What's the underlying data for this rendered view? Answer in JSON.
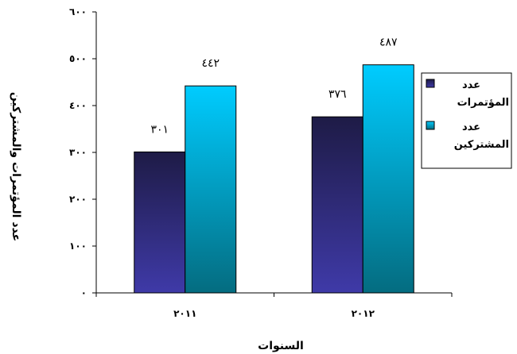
{
  "chart_data": {
    "type": "bar",
    "categories": [
      "٢٠١١",
      "٢٠١٢"
    ],
    "category_values": [
      2011,
      2012
    ],
    "series": [
      {
        "name": "عدد المؤتمرات",
        "values": [
          301,
          376
        ],
        "labels": [
          "٣٠١",
          "٣٧٦"
        ],
        "color_top": "#1e1b46",
        "color_bottom": "#3f3aa8"
      },
      {
        "name": "عدد المشتركين",
        "values": [
          442,
          487
        ],
        "labels": [
          "٤٤٢",
          "٤٨٧"
        ],
        "color_top": "#00ccff",
        "color_bottom": "#046c80"
      }
    ],
    "y_ticks": [
      0,
      100,
      200,
      300,
      400,
      500,
      600
    ],
    "y_tick_labels": [
      "٠",
      "١٠٠",
      "٢٠٠",
      "٣٠٠",
      "٤٠٠",
      "٥٠٠",
      "٦٠٠"
    ],
    "ylim": [
      0,
      600
    ],
    "xlabel": "السنوات",
    "ylabel": "عدد المؤتمرات والمشتركين",
    "legend_position": "right",
    "grid": false
  }
}
